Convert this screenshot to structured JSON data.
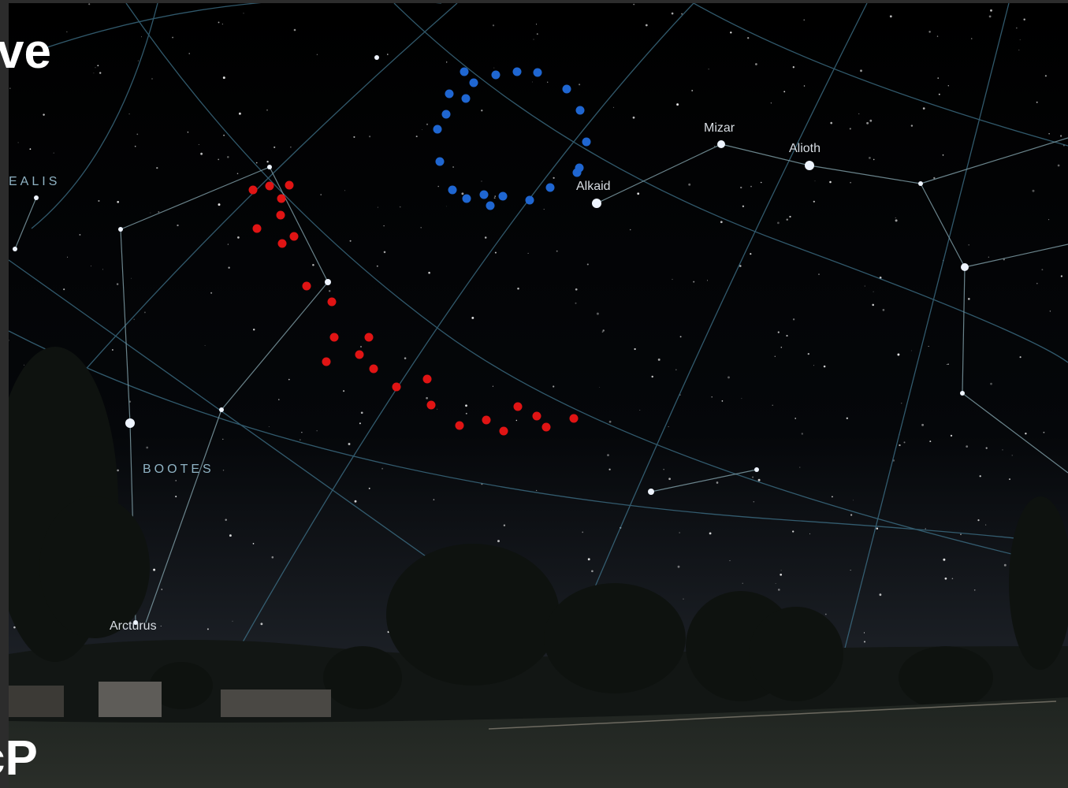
{
  "overlay_text": {
    "top": "ve",
    "bottom": "cP"
  },
  "labels": {
    "constellations": [
      "EALIS",
      "BOOTES"
    ],
    "stars": [
      "Mizar",
      "Alioth",
      "Alkaid",
      "Arcturus"
    ]
  }
}
